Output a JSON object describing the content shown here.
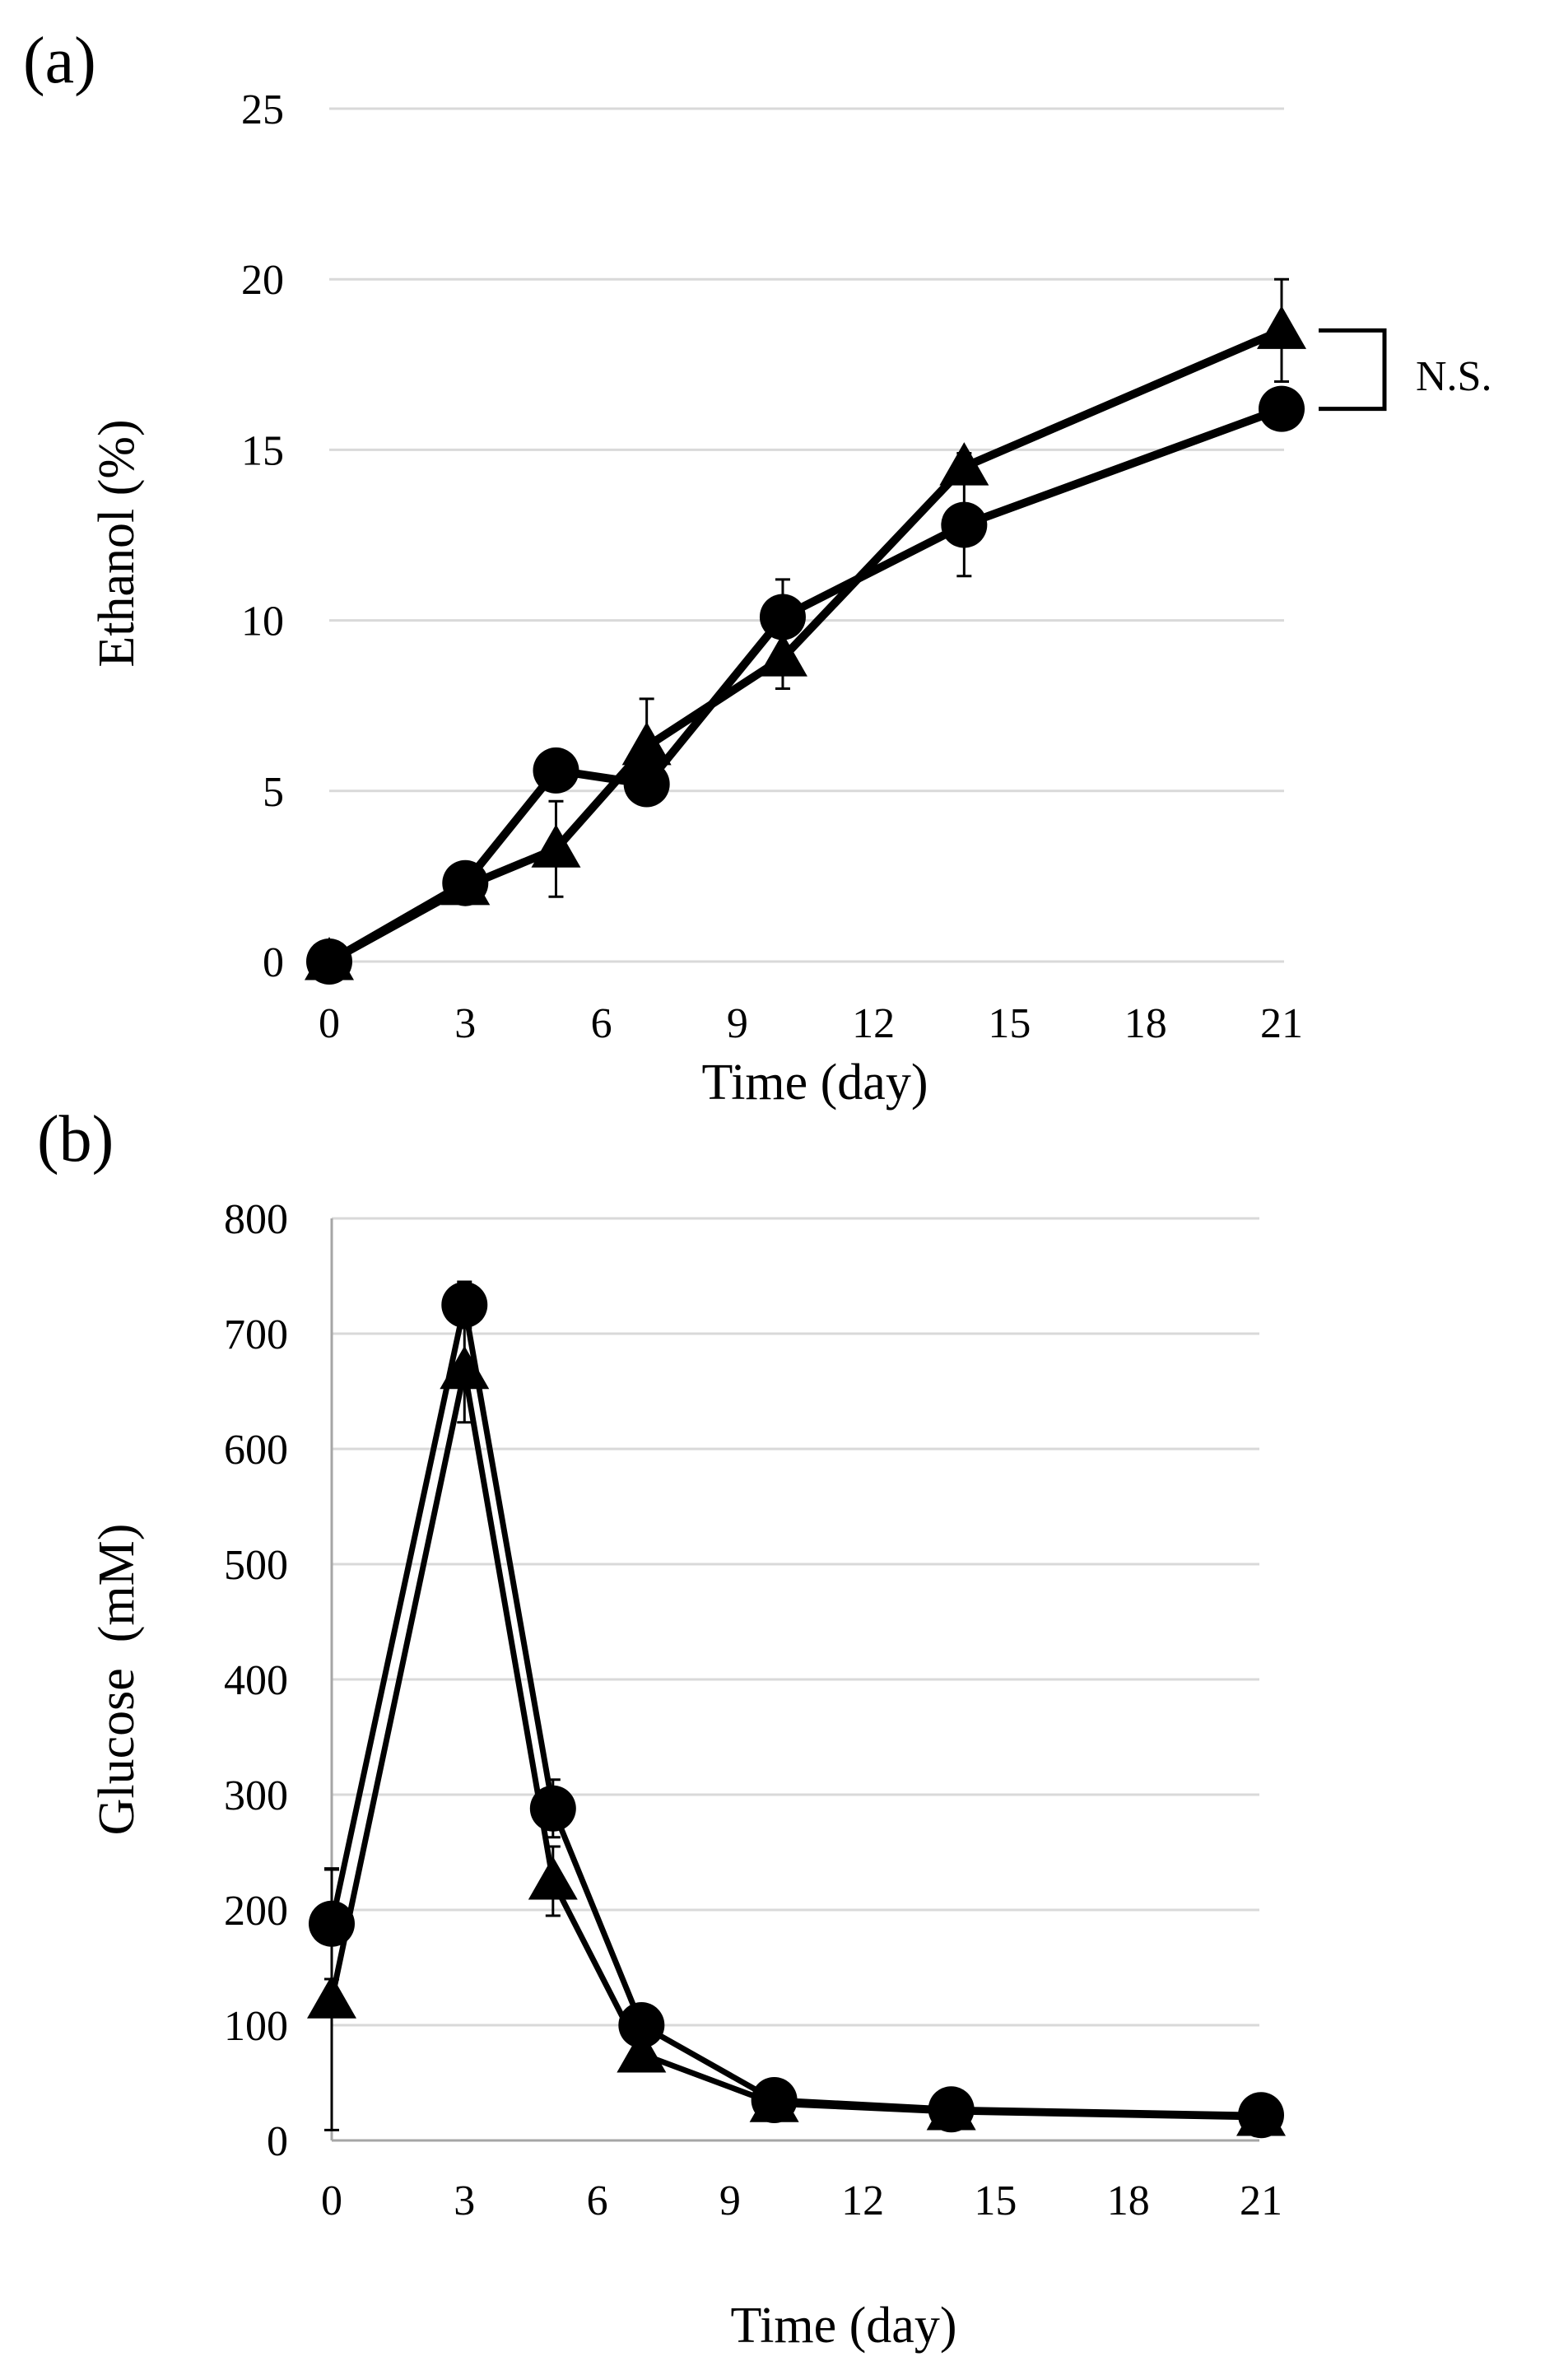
{
  "chart_data": [
    {
      "panel_label": "(a)",
      "type": "line",
      "title": "",
      "xlabel": "Time (day)",
      "ylabel": "Ethanol (%)",
      "xlim": [
        0,
        21
      ],
      "ylim": [
        0,
        25
      ],
      "xticks": [
        0,
        3,
        6,
        9,
        12,
        15,
        18,
        21
      ],
      "yticks": [
        0,
        5,
        10,
        15,
        20,
        25
      ],
      "grid": "horizontal",
      "series": [
        {
          "name": "circle",
          "marker": "circle",
          "x": [
            0,
            3,
            5,
            7,
            10,
            14,
            21
          ],
          "values": [
            0,
            2.3,
            5.6,
            5.2,
            10.1,
            12.8,
            16.2
          ],
          "errors": [
            0,
            0.1,
            0.6,
            0.4,
            1.1,
            1.5,
            0.2
          ]
        },
        {
          "name": "triangle",
          "marker": "triangle",
          "x": [
            0,
            3,
            5,
            7,
            10,
            14,
            21
          ],
          "values": [
            0,
            2.2,
            3.3,
            6.3,
            8.9,
            14.5,
            18.5
          ],
          "errors": [
            0,
            0.1,
            1.4,
            1.4,
            0.9,
            0.4,
            1.5
          ]
        }
      ],
      "annotation": {
        "text": "N.S.",
        "between": [
          18.5,
          16.2
        ],
        "x": 21
      }
    },
    {
      "panel_label": "(b)",
      "type": "line",
      "title": "",
      "xlabel": "Time (day)",
      "ylabel": "Glucose  (mM)",
      "xlim": [
        0,
        21
      ],
      "ylim": [
        0,
        800
      ],
      "xticks": [
        0,
        3,
        6,
        9,
        12,
        15,
        18,
        21
      ],
      "yticks": [
        0,
        100,
        200,
        300,
        400,
        500,
        600,
        700,
        800
      ],
      "grid": "horizontal",
      "series": [
        {
          "name": "circle",
          "marker": "circle",
          "x": [
            0,
            3,
            5,
            7,
            10,
            14,
            21
          ],
          "values": [
            188,
            725,
            288,
            100,
            35,
            27,
            22
          ],
          "errors": [
            48,
            20,
            25,
            5,
            3,
            2,
            2
          ]
        },
        {
          "name": "triangle",
          "marker": "triangle",
          "x": [
            0,
            3,
            5,
            7,
            10,
            14,
            21
          ],
          "values": [
            122,
            668,
            225,
            75,
            32,
            25,
            20
          ],
          "errors": [
            113,
            45,
            30,
            5,
            3,
            2,
            2
          ]
        }
      ]
    }
  ]
}
